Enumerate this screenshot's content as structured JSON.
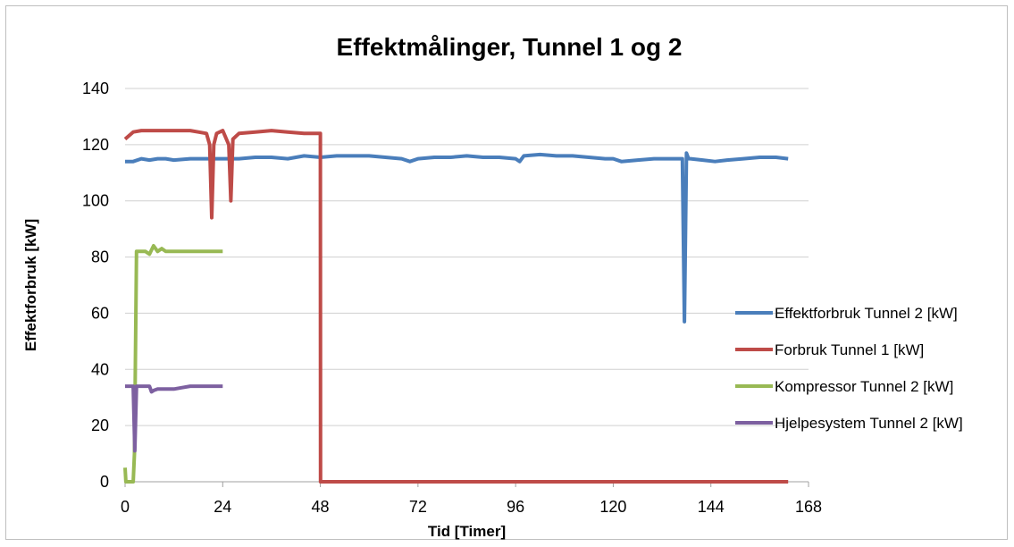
{
  "chart_data": {
    "type": "line",
    "title": "Effektmålinger, Tunnel 1 og 2",
    "xlabel": "Tid [Timer]",
    "ylabel": "Effektforbruk [kW]",
    "xlim": [
      0,
      168
    ],
    "ylim": [
      0,
      140
    ],
    "xticks": [
      0,
      24,
      48,
      72,
      96,
      120,
      144,
      168
    ],
    "yticks": [
      0,
      20,
      40,
      60,
      80,
      100,
      120,
      140
    ],
    "grid": "horizontal",
    "legend": "right",
    "series": [
      {
        "name": "Effektforbruk Tunnel 2 [kW]",
        "color": "#4a7ebb",
        "x": [
          0,
          2,
          4,
          6,
          8,
          10,
          12,
          16,
          20,
          24,
          28,
          32,
          36,
          40,
          44,
          48,
          52,
          56,
          60,
          64,
          68,
          70,
          72,
          76,
          80,
          84,
          88,
          92,
          96,
          97,
          98,
          102,
          106,
          110,
          114,
          118,
          120,
          122,
          126,
          130,
          134,
          137,
          137.5,
          138,
          138.5,
          139,
          142,
          145,
          148,
          152,
          156,
          160,
          163
        ],
        "y": [
          114,
          114,
          115,
          114.5,
          115,
          115,
          114.5,
          115,
          115,
          115,
          115,
          115.5,
          115.5,
          115,
          116,
          115.5,
          116,
          116,
          116,
          115.5,
          115,
          114,
          115,
          115.5,
          115.5,
          116,
          115.5,
          115.5,
          115,
          114,
          116,
          116.5,
          116,
          116,
          115.5,
          115,
          115,
          114,
          114.5,
          115,
          115,
          115,
          57,
          117,
          115,
          115,
          114.5,
          114,
          114.5,
          115,
          115.5,
          115.5,
          115
        ]
      },
      {
        "name": "Forbruk Tunnel 1 [kW]",
        "color": "#be4b48",
        "x": [
          0,
          2,
          4,
          8,
          12,
          16,
          18,
          20,
          20.8,
          21.3,
          21.8,
          22.5,
          24,
          25.5,
          26,
          26.5,
          28,
          32,
          36,
          40,
          44,
          47,
          48,
          48.05,
          48.2,
          60,
          80,
          100,
          120,
          140,
          163
        ],
        "y": [
          122,
          124.5,
          125,
          125,
          125,
          125,
          124.5,
          124,
          120,
          94,
          120,
          124,
          125,
          120,
          100,
          122,
          124,
          124.5,
          125,
          124.5,
          124,
          124,
          124,
          0,
          0,
          0,
          0,
          0,
          0,
          0,
          0
        ]
      },
      {
        "name": "Kompressor Tunnel 2 [kW]",
        "color": "#98b954",
        "x": [
          0,
          0.2,
          0.5,
          1,
          2,
          2.3,
          2.8,
          3.5,
          5,
          6,
          7,
          8,
          9,
          10,
          12,
          16,
          20,
          24
        ],
        "y": [
          5,
          0,
          0,
          0,
          0,
          10,
          82,
          82,
          82,
          81,
          84,
          82,
          83,
          82,
          82,
          82,
          82,
          82
        ]
      },
      {
        "name": "Hjelpesystem Tunnel 2 [kW]",
        "color": "#7d60a0",
        "x": [
          0,
          1,
          2,
          2.4,
          2.8,
          3.2,
          4,
          5,
          6,
          6.5,
          7,
          8,
          10,
          12,
          14,
          16,
          18,
          20,
          22,
          24
        ],
        "y": [
          34,
          34,
          34,
          11,
          34,
          34,
          34,
          34,
          34,
          32,
          32.5,
          33,
          33,
          33,
          33.5,
          34,
          34,
          34,
          34,
          34
        ]
      }
    ]
  }
}
